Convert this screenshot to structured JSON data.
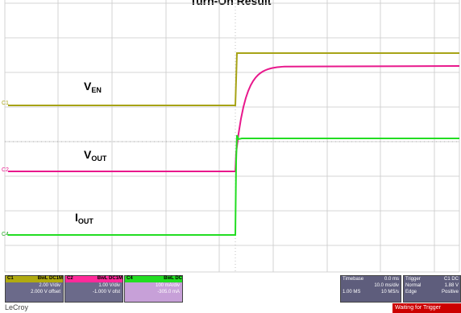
{
  "title": "Turn-On Result",
  "signals": {
    "ven": {
      "main": "V",
      "sub": "EN"
    },
    "vout": {
      "main": "V",
      "sub": "OUT"
    },
    "iout": {
      "main": "I",
      "sub": "OUT"
    }
  },
  "channel_tags": {
    "c1": "C1",
    "c2": "C2",
    "c4": "C4"
  },
  "colors": {
    "c1": "#a7a316",
    "c2": "#e8188c",
    "c4": "#22dd22",
    "grid": "#c8c8c8"
  },
  "channels": [
    {
      "name": "C1",
      "mode": "BwL DC1M",
      "scale": "2.00 V/div",
      "offset": "2.000 V offset",
      "color": "#b0aa10"
    },
    {
      "name": "C2",
      "mode": "BwL DC1M",
      "scale": "1.00 V/div",
      "offset": "-1.000 V ofst",
      "color": "#ff2a9a"
    },
    {
      "name": "C4",
      "mode": "BwL DC",
      "scale": "100 mA/div",
      "offset": "-305.0 mA",
      "color": "#22dd22"
    }
  ],
  "timebase": {
    "label": "Timebase",
    "value": "0.0 ms",
    "per_div": "10.0 ms/div",
    "samples": "1.00 MS",
    "rate": "10 MS/s"
  },
  "trigger": {
    "label": "Trigger",
    "channel": "C1 DC",
    "mode": "Normal",
    "level": "1.88 V",
    "type": "Edge",
    "slope": "Positive"
  },
  "brand": "LeCroy",
  "status": "Waiting for Trigger"
}
